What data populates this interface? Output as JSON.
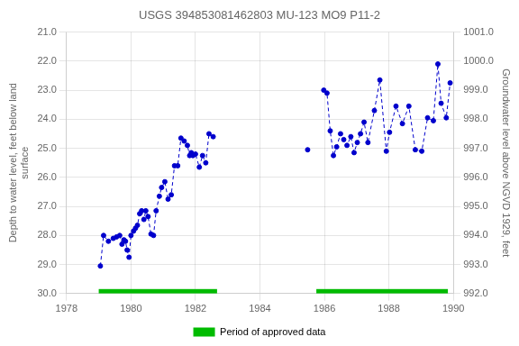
{
  "chart_data": {
    "type": "line",
    "title": "USGS 394853081462803 MU-123 MO9 P11-2",
    "ylabel": "Depth to water level, feet below land\nsurface",
    "y2label": "Groundwater level above NGVD 1929, feet",
    "xlim": [
      1978,
      1990
    ],
    "xticks": [
      1978,
      1980,
      1982,
      1984,
      1986,
      1988,
      1990
    ],
    "ylim": [
      30.0,
      21.0
    ],
    "yticks": [
      {
        "value": 21.0,
        "label": "21.0"
      },
      {
        "value": 22.0,
        "label": "22.0"
      },
      {
        "value": 23.0,
        "label": "23.0"
      },
      {
        "value": 24.0,
        "label": "24.0"
      },
      {
        "value": 25.0,
        "label": "25.0"
      },
      {
        "value": 26.0,
        "label": "26.0"
      },
      {
        "value": 27.0,
        "label": "27.0"
      },
      {
        "value": 28.0,
        "label": "28.0"
      },
      {
        "value": 29.0,
        "label": "29.0"
      },
      {
        "value": 30.0,
        "label": "30.0"
      }
    ],
    "y2lim": [
      992.0,
      1001.0
    ],
    "y2ticks": [
      {
        "value": 1001.0,
        "label": "1001.0"
      },
      {
        "value": 1000.0,
        "label": "1000.0"
      },
      {
        "value": 999.0,
        "label": "999.0"
      },
      {
        "value": 998.0,
        "label": "998.0"
      },
      {
        "value": 997.0,
        "label": "997.0"
      },
      {
        "value": 996.0,
        "label": "996.0"
      },
      {
        "value": 995.0,
        "label": "995.0"
      },
      {
        "value": 994.0,
        "label": "994.0"
      },
      {
        "value": 993.0,
        "label": "993.0"
      },
      {
        "value": 992.0,
        "label": "992.0"
      }
    ],
    "grid": true,
    "legend": "bottom",
    "series": [
      {
        "color": "#0000cc",
        "marker": "o",
        "line_style": "dashed",
        "x": [
          1979.05,
          1979.15,
          1979.3,
          1979.45,
          1979.55,
          1979.65,
          1979.72,
          1979.78,
          1979.83,
          1979.88,
          1979.94,
          1980.0,
          1980.08,
          1980.14,
          1980.2,
          1980.27,
          1980.33,
          1980.4,
          1980.46,
          1980.53,
          1980.62,
          1980.7,
          1980.78,
          1980.88,
          1980.95,
          1981.05,
          1981.15,
          1981.25,
          1981.35,
          1981.45,
          1981.55,
          1981.65,
          1981.75,
          1981.82,
          1981.87,
          1981.92,
          1982.0,
          1982.12,
          1982.22,
          1982.32,
          1982.42,
          1982.55
        ],
        "values": [
          29.05,
          28.0,
          28.2,
          28.1,
          28.05,
          28.0,
          28.3,
          28.15,
          28.2,
          28.5,
          28.75,
          28.0,
          27.85,
          27.75,
          27.65,
          27.25,
          27.15,
          27.45,
          27.15,
          27.35,
          27.95,
          28.0,
          27.15,
          26.65,
          26.35,
          26.15,
          26.75,
          26.6,
          25.6,
          25.6,
          24.65,
          24.75,
          24.9,
          25.25,
          25.15,
          25.25,
          25.2,
          25.65,
          25.25,
          25.5,
          24.5,
          24.6
        ]
      },
      {
        "color": "#0000cc",
        "marker": "o",
        "line_style": "none",
        "x": [
          1985.48
        ],
        "values": [
          25.05
        ]
      },
      {
        "color": "#0000cc",
        "marker": "o",
        "line_style": "dashed",
        "x": [
          1985.98,
          1986.08,
          1986.18,
          1986.28,
          1986.38,
          1986.5,
          1986.6,
          1986.7,
          1986.82,
          1986.92,
          1987.02,
          1987.12,
          1987.23,
          1987.35,
          1987.55,
          1987.72,
          1987.92,
          1988.02,
          1988.22,
          1988.42,
          1988.62,
          1988.82,
          1989.02,
          1989.2,
          1989.38,
          1989.52,
          1989.62,
          1989.78,
          1989.9
        ],
        "values": [
          23.0,
          23.1,
          24.4,
          25.25,
          24.95,
          24.5,
          24.7,
          24.9,
          24.6,
          25.15,
          24.8,
          24.5,
          24.1,
          24.8,
          23.7,
          22.65,
          25.1,
          24.45,
          23.55,
          24.15,
          23.55,
          25.05,
          25.1,
          23.95,
          24.05,
          22.1,
          23.45,
          23.95,
          22.75
        ]
      }
    ],
    "periods": {
      "name": "Period of approved data",
      "color": "#00bb00",
      "ranges": [
        [
          1979.0,
          1982.67
        ],
        [
          1985.75,
          1989.83
        ]
      ]
    }
  }
}
